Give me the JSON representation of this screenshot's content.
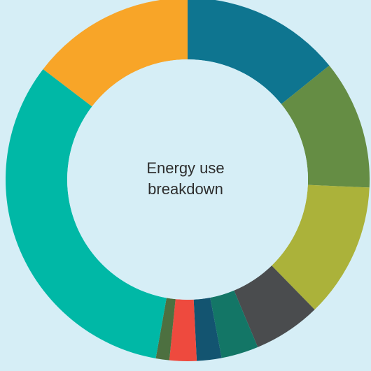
{
  "chart_data": {
    "type": "pie",
    "variant": "donut",
    "center_text_line1": "Energy use",
    "center_text_line2": "breakdown",
    "colors_note": "slices listed clockwise starting at 12 o'clock",
    "slices": [
      {
        "value": 14.2,
        "color": "#0e7590"
      },
      {
        "value": 11.5,
        "color": "#658d44"
      },
      {
        "value": 12.0,
        "color": "#abb23a"
      },
      {
        "value": 6.0,
        "color": "#4a4c4e"
      },
      {
        "value": 3.3,
        "color": "#137666"
      },
      {
        "value": 2.2,
        "color": "#135470"
      },
      {
        "value": 2.4,
        "color": "#ee4a3e"
      },
      {
        "value": 1.2,
        "color": "#4d7040"
      },
      {
        "value": 32.6,
        "color": "#00b8a6"
      },
      {
        "value": 14.6,
        "color": "#f8a528"
      }
    ]
  }
}
